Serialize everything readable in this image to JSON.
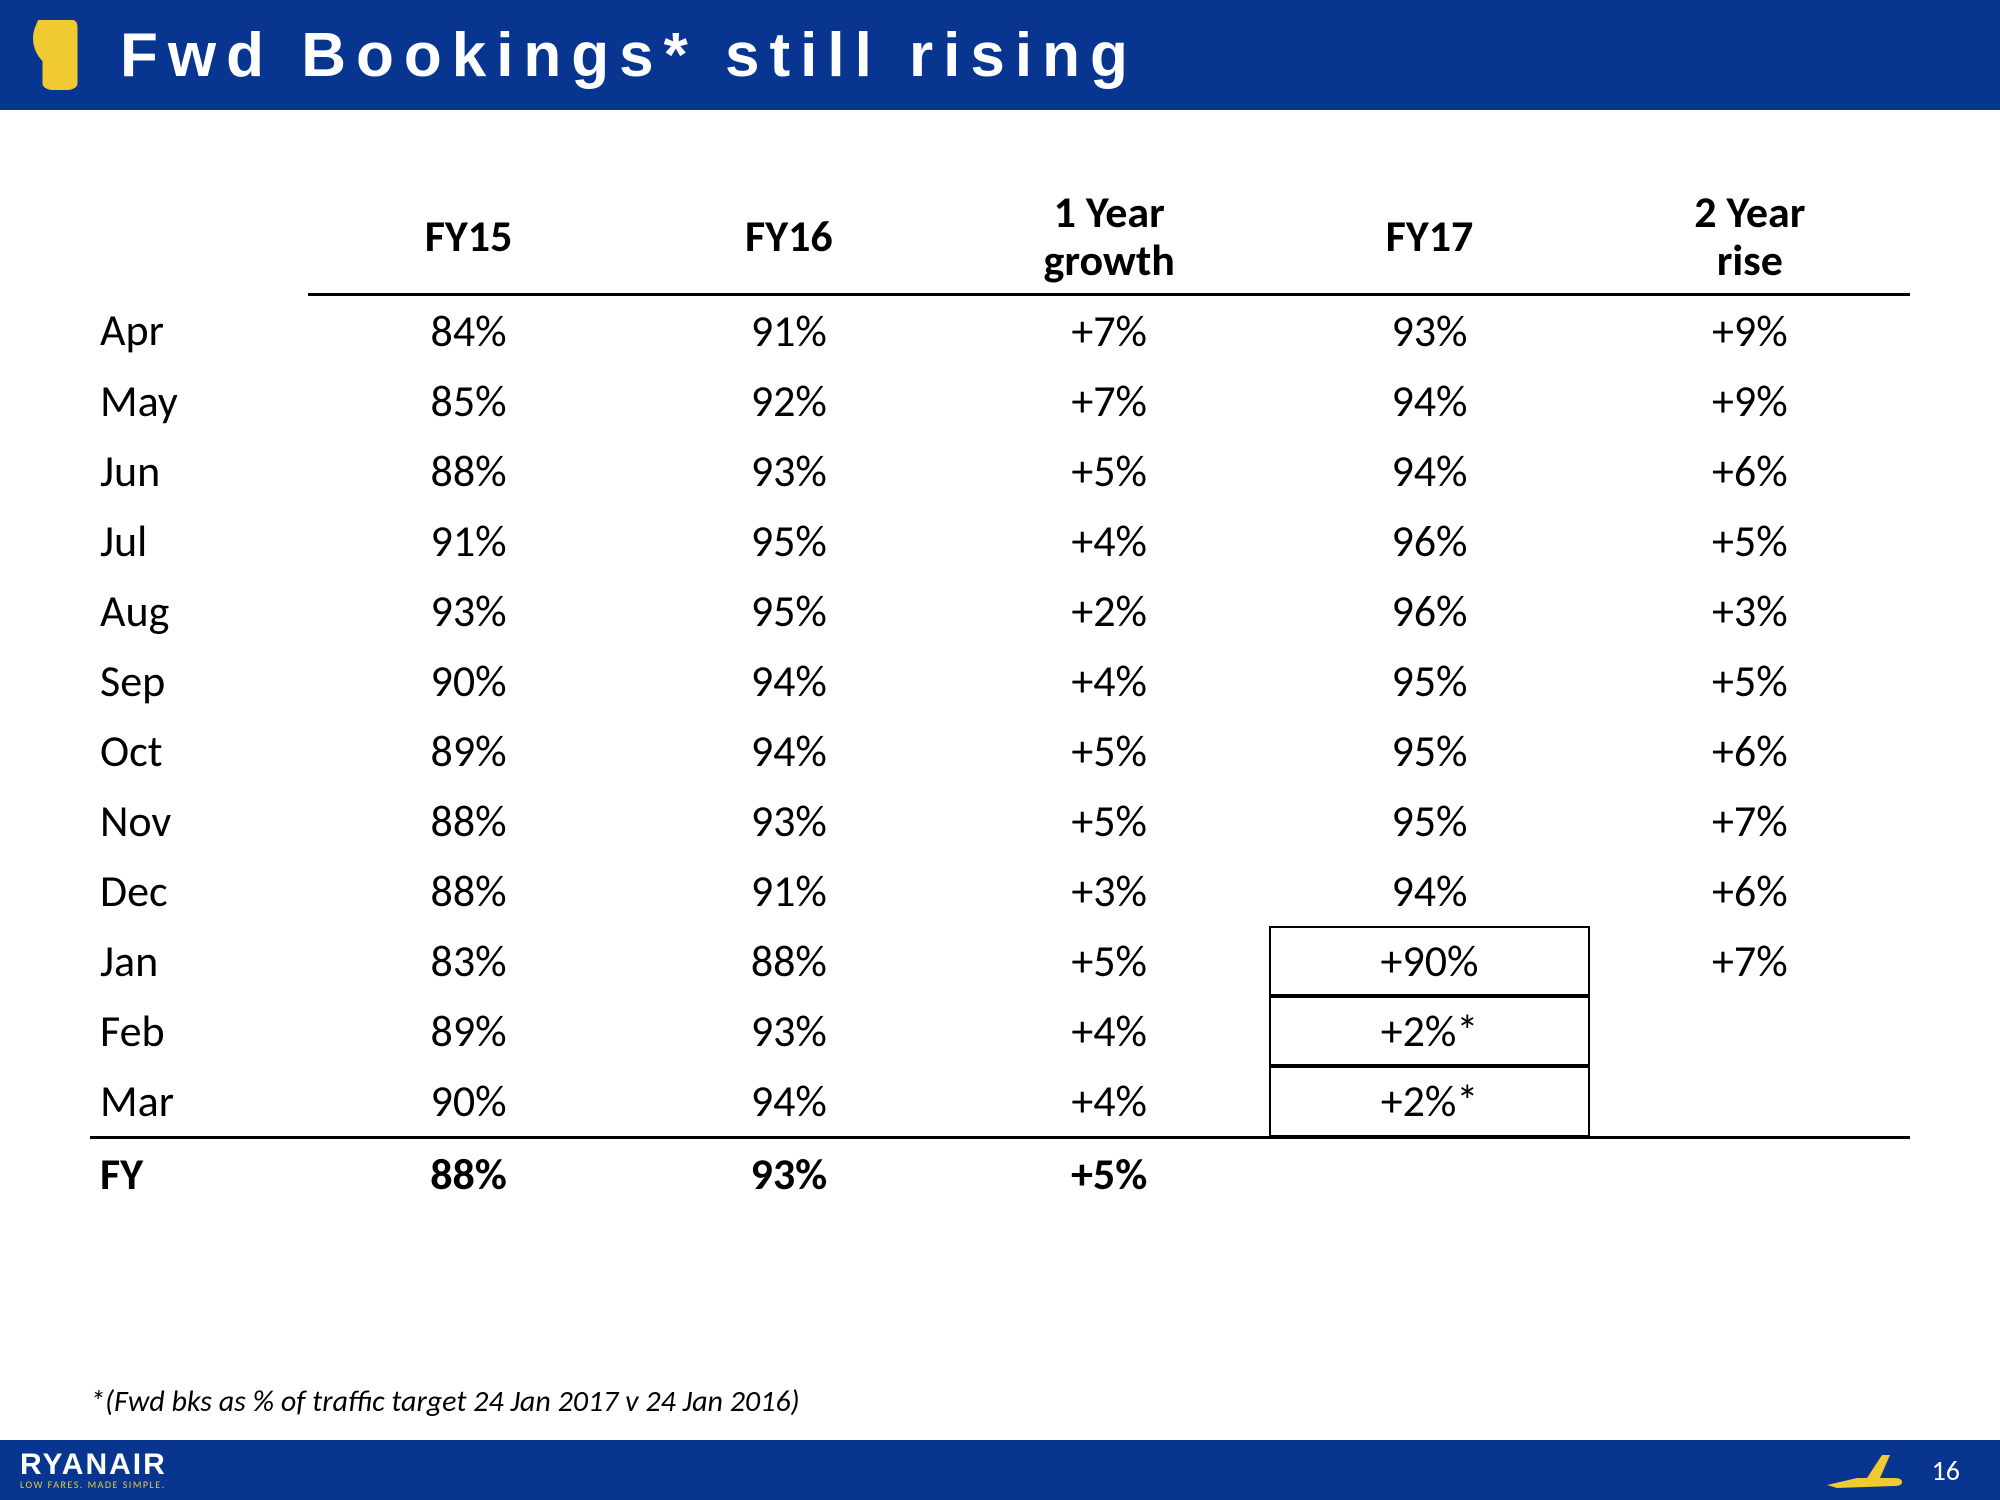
{
  "header": {
    "title": "Fwd Bookings* still rising"
  },
  "table": {
    "columns": [
      "",
      "FY15",
      "FY16",
      "1 Year\ngrowth",
      "FY17",
      "2 Year\nrise"
    ],
    "rows": [
      {
        "month": "Apr",
        "fy15": "84%",
        "fy16": "91%",
        "g1": "+7%",
        "fy17": "93%",
        "g2": "+9%",
        "box": false
      },
      {
        "month": "May",
        "fy15": "85%",
        "fy16": "92%",
        "g1": "+7%",
        "fy17": "94%",
        "g2": "+9%",
        "box": false
      },
      {
        "month": "Jun",
        "fy15": "88%",
        "fy16": "93%",
        "g1": "+5%",
        "fy17": "94%",
        "g2": "+6%",
        "box": false
      },
      {
        "month": "Jul",
        "fy15": "91%",
        "fy16": "95%",
        "g1": "+4%",
        "fy17": "96%",
        "g2": "+5%",
        "box": false
      },
      {
        "month": "Aug",
        "fy15": "93%",
        "fy16": "95%",
        "g1": "+2%",
        "fy17": "96%",
        "g2": "+3%",
        "box": false
      },
      {
        "month": "Sep",
        "fy15": "90%",
        "fy16": "94%",
        "g1": "+4%",
        "fy17": "95%",
        "g2": "+5%",
        "box": false
      },
      {
        "month": "Oct",
        "fy15": "89%",
        "fy16": "94%",
        "g1": "+5%",
        "fy17": "95%",
        "g2": "+6%",
        "box": false
      },
      {
        "month": "Nov",
        "fy15": "88%",
        "fy16": "93%",
        "g1": "+5%",
        "fy17": "95%",
        "g2": "+7%",
        "box": false
      },
      {
        "month": "Dec",
        "fy15": "88%",
        "fy16": "91%",
        "g1": "+3%",
        "fy17": "94%",
        "g2": "+6%",
        "box": false
      },
      {
        "month": "Jan",
        "fy15": "83%",
        "fy16": "88%",
        "g1": "+5%",
        "fy17": "+90%",
        "g2": "+7%",
        "box": true
      },
      {
        "month": "Feb",
        "fy15": "89%",
        "fy16": "93%",
        "g1": "+4%",
        "fy17": "+2%*",
        "g2": "",
        "box": true
      },
      {
        "month": "Mar",
        "fy15": "90%",
        "fy16": "94%",
        "g1": "+4%",
        "fy17": "+2%*",
        "g2": "",
        "box": true
      }
    ],
    "fy_row": {
      "month": "FY",
      "fy15": "88%",
      "fy16": "93%",
      "g1": "+5%",
      "fy17": "",
      "g2": ""
    }
  },
  "footnote": "*(Fwd bks as % of traffic target  24 Jan 2017 v 24 Jan 2016)",
  "footer": {
    "brand": "RYANAIR",
    "tagline": "LOW FARES. MADE SIMPLE.",
    "page": "16"
  },
  "styling": {
    "header_bg": "#073590",
    "header_text_color": "#ffffff",
    "accent_yellow": "#f1c931",
    "body_bg": "#ffffff",
    "text_color": "#000000",
    "rule_color": "#000000",
    "header_title_fontsize": 62,
    "header_letter_spacing": 10,
    "cell_fontsize": 44,
    "footnote_fontsize": 30,
    "page_num_fontsize": 28
  }
}
